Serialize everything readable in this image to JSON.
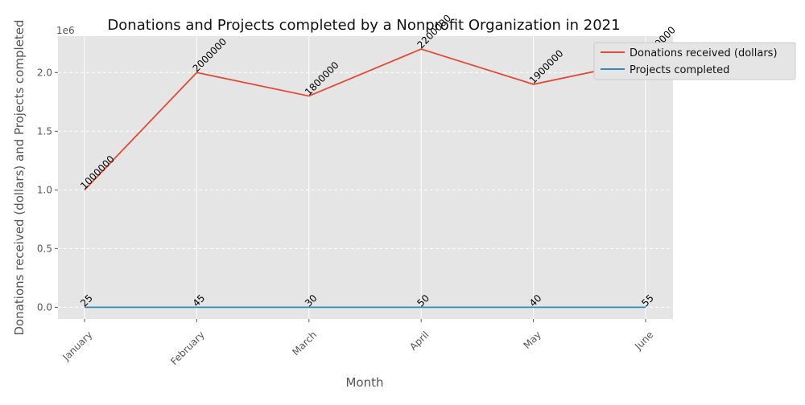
{
  "chart_data": {
    "type": "line",
    "title": "Donations and Projects completed by a Nonprofit Organization in 2021",
    "xlabel": "Month",
    "ylabel": "Donations received (dollars) and Projects completed",
    "y_offset_label": "1e6",
    "categories": [
      "January",
      "February",
      "March",
      "April",
      "May",
      "June"
    ],
    "series": [
      {
        "name": "Donations received (dollars)",
        "color": "#e24a33",
        "values": [
          1000000,
          2000000,
          1800000,
          2200000,
          1900000,
          2100000
        ]
      },
      {
        "name": "Projects completed",
        "color": "#348abd",
        "values": [
          25,
          45,
          30,
          50,
          40,
          55
        ]
      }
    ],
    "y_ticks": [
      0,
      500000,
      1000000,
      1500000,
      2000000
    ],
    "y_tick_labels": [
      "0.0",
      "0.5",
      "1.0",
      "1.5",
      "2.0"
    ],
    "ylim": [
      -100000,
      2310000
    ],
    "grid": true,
    "legend_position": "top-right",
    "style": {
      "background": "#e5e5e5",
      "grid_color": "#ffffff"
    }
  }
}
